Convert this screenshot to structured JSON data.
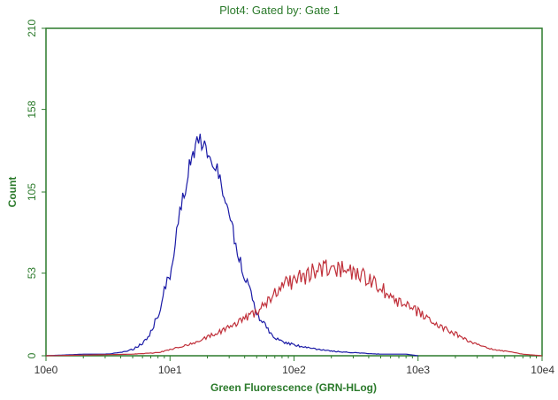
{
  "chart_data": {
    "type": "line",
    "title": "Plot4:  Gated by: Gate 1",
    "xlabel": "Green Fluorescence (GRN-HLog)",
    "ylabel": "Count",
    "x_scale": "log",
    "xlim": [
      1,
      10000
    ],
    "ylim": [
      0,
      210
    ],
    "x_tick_labels": [
      "10e0",
      "10e1",
      "10e2",
      "10e3",
      "10e4"
    ],
    "x_tick_values": [
      1,
      10,
      100,
      1000,
      10000
    ],
    "y_tick_labels": [
      "0",
      "53",
      "105",
      "158",
      "210"
    ],
    "y_tick_values": [
      0,
      53,
      105,
      158,
      210
    ],
    "grid": false,
    "series": [
      {
        "color": "#1a1aa6",
        "points": [
          [
            1,
            0
          ],
          [
            2,
            1
          ],
          [
            3,
            1
          ],
          [
            4,
            2
          ],
          [
            5,
            4
          ],
          [
            6,
            8
          ],
          [
            7,
            15
          ],
          [
            8,
            26
          ],
          [
            9,
            40
          ],
          [
            10,
            55
          ],
          [
            11,
            72
          ],
          [
            12,
            90
          ],
          [
            13,
            105
          ],
          [
            14,
            118
          ],
          [
            15,
            128
          ],
          [
            16,
            135
          ],
          [
            17,
            140
          ],
          [
            18,
            137
          ],
          [
            20,
            130
          ],
          [
            22,
            125
          ],
          [
            24,
            120
          ],
          [
            26,
            110
          ],
          [
            28,
            100
          ],
          [
            30,
            88
          ],
          [
            33,
            75
          ],
          [
            36,
            62
          ],
          [
            40,
            50
          ],
          [
            45,
            38
          ],
          [
            50,
            28
          ],
          [
            60,
            18
          ],
          [
            70,
            12
          ],
          [
            80,
            9
          ],
          [
            100,
            7
          ],
          [
            130,
            5
          ],
          [
            160,
            4
          ],
          [
            200,
            3
          ],
          [
            300,
            2
          ],
          [
            500,
            1
          ],
          [
            800,
            1
          ],
          [
            1000,
            0
          ]
        ]
      },
      {
        "color": "#c0303a",
        "points": [
          [
            1,
            0
          ],
          [
            5,
            1
          ],
          [
            8,
            2
          ],
          [
            10,
            4
          ],
          [
            15,
            8
          ],
          [
            20,
            12
          ],
          [
            30,
            18
          ],
          [
            40,
            24
          ],
          [
            50,
            28
          ],
          [
            60,
            34
          ],
          [
            70,
            40
          ],
          [
            80,
            45
          ],
          [
            100,
            48
          ],
          [
            130,
            52
          ],
          [
            160,
            56
          ],
          [
            200,
            57
          ],
          [
            250,
            55
          ],
          [
            300,
            54
          ],
          [
            400,
            50
          ],
          [
            500,
            44
          ],
          [
            600,
            38
          ],
          [
            800,
            32
          ],
          [
            1000,
            28
          ],
          [
            1300,
            22
          ],
          [
            1600,
            18
          ],
          [
            2000,
            14
          ],
          [
            2500,
            10
          ],
          [
            3000,
            7
          ],
          [
            4000,
            4
          ],
          [
            5000,
            3
          ],
          [
            7000,
            1
          ],
          [
            10000,
            0
          ]
        ]
      }
    ]
  }
}
